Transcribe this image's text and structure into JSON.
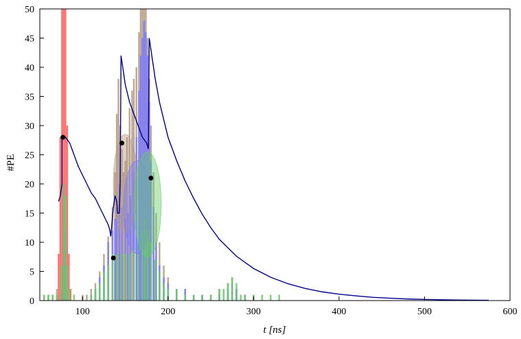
{
  "chart_data": {
    "type": "line",
    "title": "",
    "xlabel": "t [ns]",
    "ylabel": "#PE",
    "xlim": [
      50,
      600
    ],
    "ylim": [
      0,
      50
    ],
    "xticks": [
      100,
      200,
      300,
      400,
      500,
      600
    ],
    "yticks": [
      0,
      5,
      10,
      15,
      20,
      25,
      30,
      35,
      40,
      45,
      50
    ],
    "grid": false,
    "legend": "none",
    "colors": {
      "red": "#ff5a5a",
      "tan": "#b39a82",
      "blue": "#7a7aff",
      "green": "#66cc66",
      "curve": "#00008b",
      "dots": "#000000"
    },
    "histograms": [
      {
        "color": "red",
        "bins": [
          [
            70,
            1
          ],
          [
            72,
            8
          ],
          [
            74,
            28
          ],
          [
            76,
            50
          ],
          [
            78,
            50
          ],
          [
            80,
            50
          ],
          [
            82,
            30
          ],
          [
            84,
            8
          ],
          [
            86,
            2
          ]
        ]
      },
      {
        "color": "tan",
        "bins": [
          [
            55,
            1
          ],
          [
            60,
            1
          ],
          [
            65,
            1
          ],
          [
            70,
            2
          ],
          [
            100,
            1
          ],
          [
            105,
            1
          ],
          [
            110,
            2
          ],
          [
            115,
            3
          ],
          [
            120,
            5
          ],
          [
            125,
            8
          ],
          [
            130,
            11
          ],
          [
            135,
            16
          ],
          [
            138,
            22
          ],
          [
            140,
            32
          ],
          [
            142,
            38
          ],
          [
            144,
            30
          ],
          [
            146,
            26
          ],
          [
            148,
            22
          ],
          [
            150,
            24
          ],
          [
            152,
            28
          ],
          [
            155,
            33
          ],
          [
            158,
            36
          ],
          [
            160,
            38
          ],
          [
            163,
            40
          ],
          [
            166,
            46
          ],
          [
            168,
            50
          ],
          [
            170,
            50
          ],
          [
            172,
            50
          ],
          [
            174,
            50
          ],
          [
            176,
            45
          ],
          [
            178,
            38
          ],
          [
            180,
            30
          ],
          [
            183,
            22
          ],
          [
            186,
            15
          ],
          [
            190,
            10
          ],
          [
            195,
            6
          ],
          [
            200,
            4
          ],
          [
            210,
            2
          ],
          [
            220,
            2
          ],
          [
            230,
            1
          ],
          [
            240,
            1
          ],
          [
            250,
            1
          ],
          [
            260,
            2
          ],
          [
            270,
            3
          ],
          [
            275,
            4
          ],
          [
            280,
            2
          ],
          [
            290,
            1
          ],
          [
            300,
            1
          ]
        ]
      },
      {
        "color": "blue",
        "bins": [
          [
            75,
            1
          ],
          [
            78,
            20
          ],
          [
            80,
            12
          ],
          [
            110,
            1
          ],
          [
            115,
            2
          ],
          [
            120,
            4
          ],
          [
            125,
            6
          ],
          [
            130,
            10
          ],
          [
            135,
            12
          ],
          [
            138,
            14
          ],
          [
            140,
            16
          ],
          [
            143,
            20
          ],
          [
            146,
            16
          ],
          [
            150,
            14
          ],
          [
            153,
            15
          ],
          [
            156,
            18
          ],
          [
            160,
            22
          ],
          [
            163,
            28
          ],
          [
            166,
            36
          ],
          [
            168,
            42
          ],
          [
            170,
            45
          ],
          [
            172,
            48
          ],
          [
            174,
            46
          ],
          [
            176,
            42
          ],
          [
            178,
            34
          ],
          [
            180,
            24
          ],
          [
            183,
            16
          ],
          [
            186,
            10
          ],
          [
            190,
            6
          ],
          [
            195,
            4
          ],
          [
            200,
            3
          ],
          [
            210,
            2
          ],
          [
            220,
            2
          ],
          [
            230,
            1
          ],
          [
            240,
            1
          ],
          [
            260,
            1
          ],
          [
            270,
            2
          ],
          [
            275,
            3
          ],
          [
            280,
            2
          ],
          [
            290,
            1
          ]
        ]
      },
      {
        "color": "green",
        "bins": [
          [
            55,
            1
          ],
          [
            60,
            1
          ],
          [
            65,
            1
          ],
          [
            70,
            1
          ],
          [
            75,
            6
          ],
          [
            78,
            20
          ],
          [
            80,
            18
          ],
          [
            82,
            6
          ],
          [
            85,
            2
          ],
          [
            90,
            1
          ],
          [
            110,
            1
          ],
          [
            115,
            2
          ],
          [
            120,
            3
          ],
          [
            125,
            5
          ],
          [
            130,
            6
          ],
          [
            135,
            8
          ],
          [
            140,
            8
          ],
          [
            145,
            8
          ],
          [
            150,
            8
          ],
          [
            155,
            8
          ],
          [
            160,
            9
          ],
          [
            165,
            10
          ],
          [
            170,
            12
          ],
          [
            173,
            14
          ],
          [
            176,
            12
          ],
          [
            180,
            10
          ],
          [
            185,
            7
          ],
          [
            190,
            5
          ],
          [
            195,
            3
          ],
          [
            200,
            2
          ],
          [
            210,
            2
          ],
          [
            220,
            1
          ],
          [
            230,
            1
          ],
          [
            240,
            1
          ],
          [
            250,
            1
          ],
          [
            260,
            2
          ],
          [
            265,
            2
          ],
          [
            270,
            3
          ],
          [
            275,
            4
          ],
          [
            280,
            3
          ],
          [
            285,
            1
          ],
          [
            290,
            1
          ],
          [
            300,
            1
          ],
          [
            310,
            1
          ],
          [
            320,
            1
          ],
          [
            330,
            1
          ]
        ]
      }
    ],
    "curve": {
      "x": [
        72,
        74,
        76,
        76,
        80,
        85,
        90,
        95,
        100,
        105,
        110,
        115,
        120,
        125,
        130,
        132,
        133,
        136,
        138,
        140,
        141,
        143,
        144,
        145,
        147,
        150,
        155,
        160,
        165,
        170,
        175,
        177,
        178,
        180,
        185,
        190,
        200,
        210,
        220,
        230,
        240,
        250,
        260,
        280,
        300,
        320,
        340,
        360,
        380,
        400,
        420,
        440,
        460,
        480,
        500,
        520,
        540,
        560,
        575
      ],
      "y": [
        17,
        18,
        20,
        28,
        28,
        27,
        25,
        23,
        21.5,
        20,
        18.5,
        17.5,
        16,
        14.5,
        13,
        12,
        11,
        16,
        18,
        17,
        15,
        15,
        20,
        42,
        40,
        37,
        34,
        32,
        30,
        28,
        27,
        26,
        45,
        43,
        38,
        34,
        28,
        24,
        20.5,
        17.5,
        14.8,
        12.5,
        10.5,
        7.6,
        5.5,
        4,
        2.9,
        2.1,
        1.5,
        1.1,
        0.8,
        0.55,
        0.4,
        0.28,
        0.2,
        0.14,
        0.1,
        0.07,
        0.05
      ]
    },
    "ellipses": [
      {
        "color": "tan",
        "cx": 150,
        "cy": 20,
        "rx": 14,
        "ry": 8.5
      },
      {
        "color": "blue",
        "cx": 164,
        "cy": 16,
        "rx": 16,
        "ry": 8
      },
      {
        "color": "green",
        "cx": 176,
        "cy": 16.5,
        "rx": 16,
        "ry": 9
      }
    ],
    "points": [
      {
        "x": 77,
        "y": 28
      },
      {
        "x": 146,
        "y": 27
      },
      {
        "x": 180,
        "y": 21
      },
      {
        "x": 136,
        "y": 7.3
      }
    ]
  }
}
